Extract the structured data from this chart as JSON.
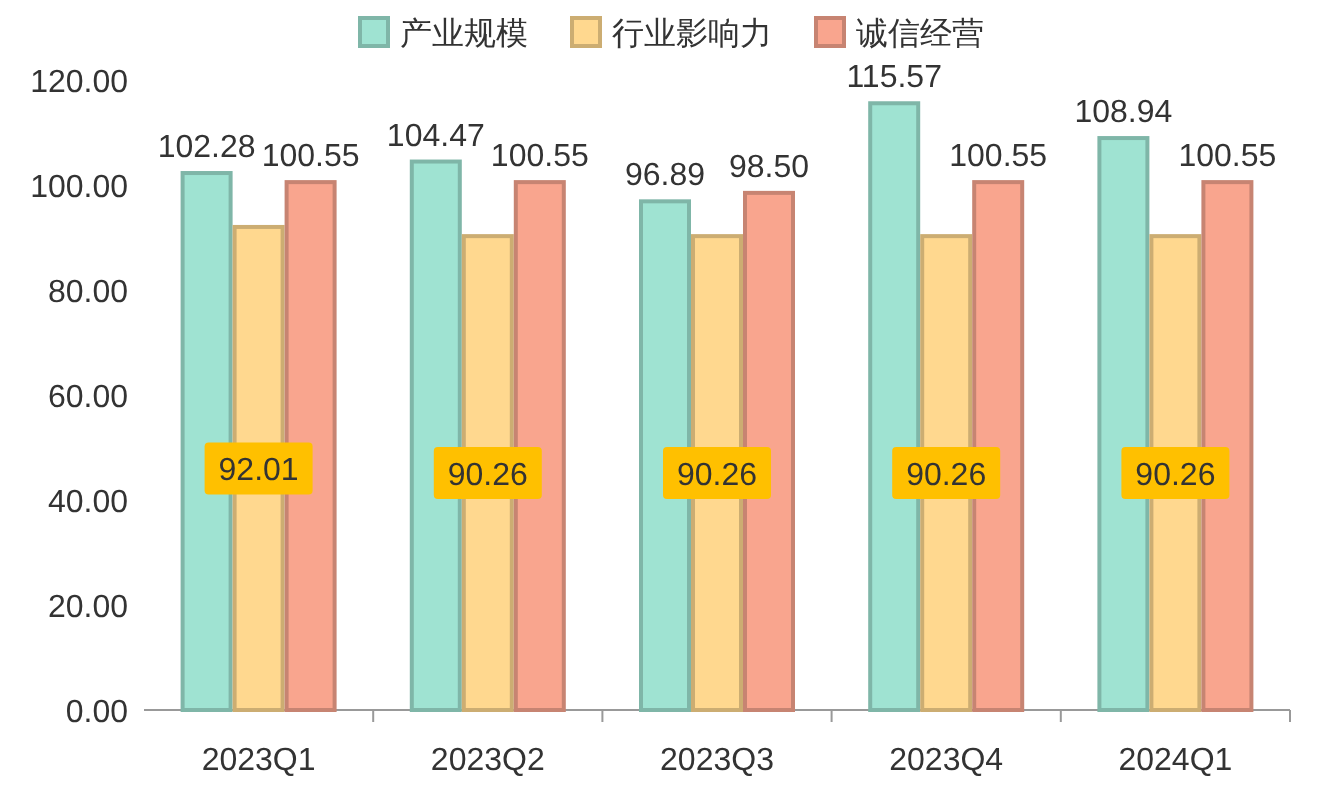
{
  "chart_data": {
    "type": "bar",
    "categories": [
      "2023Q1",
      "2023Q2",
      "2023Q3",
      "2023Q4",
      "2024Q1"
    ],
    "series": [
      {
        "name": "产业规模",
        "color": "#9fe3d2",
        "values": [
          102.28,
          104.47,
          96.89,
          115.57,
          108.94
        ],
        "value_labels": [
          "102.28",
          "104.47",
          "96.89",
          "115.57",
          "108.94"
        ]
      },
      {
        "name": "行业影响力",
        "color": "#ffd88f",
        "values": [
          92.01,
          90.26,
          90.26,
          90.26,
          90.26
        ],
        "value_labels": [
          "92.01",
          "90.26",
          "90.26",
          "90.26",
          "90.26"
        ]
      },
      {
        "name": "诚信经营",
        "color": "#f9a58e",
        "values": [
          100.55,
          100.55,
          98.5,
          100.55,
          100.55
        ],
        "value_labels": [
          "100.55",
          "100.55",
          "98.50",
          "100.55",
          "100.55"
        ]
      }
    ],
    "ylim": [
      0,
      120
    ],
    "yticks": [
      {
        "value": 0,
        "label": "0.00"
      },
      {
        "value": 20,
        "label": "20.00"
      },
      {
        "value": 40,
        "label": "40.00"
      },
      {
        "value": 60,
        "label": "60.00"
      },
      {
        "value": 80,
        "label": "80.00"
      },
      {
        "value": 100,
        "label": "100.00"
      },
      {
        "value": 120,
        "label": "120.00"
      }
    ],
    "legend": "top",
    "grid": false
  }
}
